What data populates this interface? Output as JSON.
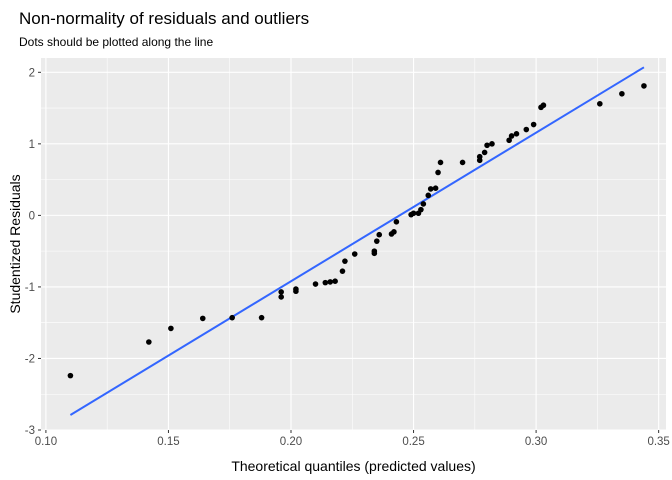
{
  "chart_data": {
    "type": "scatter",
    "title": "Non-normality of residuals and outliers",
    "subtitle": "Dots should be plotted along the line",
    "xlabel": "Theoretical quantiles (predicted values)",
    "ylabel": "Studentized Residuals",
    "xlim": [
      0.098,
      0.353
    ],
    "ylim": [
      -3.0,
      2.2
    ],
    "x_ticks": [
      0.1,
      0.15,
      0.2,
      0.25,
      0.3,
      0.35
    ],
    "x_tick_labels": [
      "0.10",
      "0.15",
      "0.20",
      "0.25",
      "0.30",
      "0.35"
    ],
    "y_ticks": [
      -3,
      -2,
      -1,
      0,
      1,
      2
    ],
    "y_tick_labels": [
      "-3",
      "-2",
      "-1",
      "0",
      "1",
      "2"
    ],
    "grid": true,
    "reference_line": {
      "x": [
        0.11,
        0.344
      ],
      "y": [
        -2.79,
        2.07
      ],
      "color": "#3366ff"
    },
    "point_color": "#000000",
    "panel_color": "#ebebeb",
    "points": [
      {
        "x": 0.11,
        "y": -2.24
      },
      {
        "x": 0.142,
        "y": -1.77
      },
      {
        "x": 0.151,
        "y": -1.58
      },
      {
        "x": 0.164,
        "y": -1.44
      },
      {
        "x": 0.176,
        "y": -1.43
      },
      {
        "x": 0.188,
        "y": -1.43
      },
      {
        "x": 0.196,
        "y": -1.14
      },
      {
        "x": 0.196,
        "y": -1.07
      },
      {
        "x": 0.202,
        "y": -1.06
      },
      {
        "x": 0.202,
        "y": -1.03
      },
      {
        "x": 0.21,
        "y": -0.96
      },
      {
        "x": 0.214,
        "y": -0.94
      },
      {
        "x": 0.216,
        "y": -0.93
      },
      {
        "x": 0.218,
        "y": -0.92
      },
      {
        "x": 0.221,
        "y": -0.78
      },
      {
        "x": 0.222,
        "y": -0.64
      },
      {
        "x": 0.226,
        "y": -0.54
      },
      {
        "x": 0.234,
        "y": -0.53
      },
      {
        "x": 0.234,
        "y": -0.5
      },
      {
        "x": 0.235,
        "y": -0.36
      },
      {
        "x": 0.236,
        "y": -0.27
      },
      {
        "x": 0.241,
        "y": -0.26
      },
      {
        "x": 0.242,
        "y": -0.23
      },
      {
        "x": 0.243,
        "y": -0.09
      },
      {
        "x": 0.249,
        "y": 0.01
      },
      {
        "x": 0.25,
        "y": 0.03
      },
      {
        "x": 0.252,
        "y": 0.03
      },
      {
        "x": 0.253,
        "y": 0.08
      },
      {
        "x": 0.254,
        "y": 0.16
      },
      {
        "x": 0.256,
        "y": 0.28
      },
      {
        "x": 0.257,
        "y": 0.37
      },
      {
        "x": 0.259,
        "y": 0.38
      },
      {
        "x": 0.26,
        "y": 0.6
      },
      {
        "x": 0.261,
        "y": 0.74
      },
      {
        "x": 0.27,
        "y": 0.74
      },
      {
        "x": 0.277,
        "y": 0.77
      },
      {
        "x": 0.277,
        "y": 0.82
      },
      {
        "x": 0.279,
        "y": 0.88
      },
      {
        "x": 0.28,
        "y": 0.98
      },
      {
        "x": 0.282,
        "y": 1.0
      },
      {
        "x": 0.289,
        "y": 1.05
      },
      {
        "x": 0.29,
        "y": 1.11
      },
      {
        "x": 0.292,
        "y": 1.14
      },
      {
        "x": 0.296,
        "y": 1.2
      },
      {
        "x": 0.299,
        "y": 1.27
      },
      {
        "x": 0.302,
        "y": 1.51
      },
      {
        "x": 0.303,
        "y": 1.54
      },
      {
        "x": 0.326,
        "y": 1.56
      },
      {
        "x": 0.335,
        "y": 1.7
      },
      {
        "x": 0.344,
        "y": 1.81
      }
    ]
  }
}
